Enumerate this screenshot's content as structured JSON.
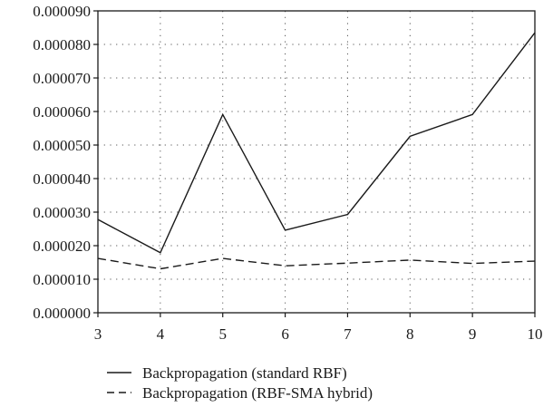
{
  "chart_data": {
    "type": "line",
    "title": "",
    "xlabel": "",
    "ylabel": "",
    "x": [
      3,
      4,
      5,
      6,
      7,
      8,
      9,
      10
    ],
    "xlim": [
      3,
      10
    ],
    "ylim": [
      0,
      9e-05
    ],
    "x_ticks": [
      "3",
      "4",
      "5",
      "6",
      "7",
      "8",
      "9",
      "10"
    ],
    "y_ticks": [
      {
        "value": 9e-05,
        "label": "0.000090"
      },
      {
        "value": 8e-05,
        "label": "0.000080"
      },
      {
        "value": 7e-05,
        "label": "0.000070"
      },
      {
        "value": 6e-05,
        "label": "0.000060"
      },
      {
        "value": 5e-05,
        "label": "0.000050"
      },
      {
        "value": 4e-05,
        "label": "0.000040"
      },
      {
        "value": 3e-05,
        "label": "0.000030"
      },
      {
        "value": 2e-05,
        "label": "0.000020"
      },
      {
        "value": 1e-05,
        "label": "0.000010"
      },
      {
        "value": 0.0,
        "label": "0.000000"
      }
    ],
    "grid": true,
    "grid_style": "dotted",
    "legend_position": "bottom",
    "series": [
      {
        "name": "Backpropagation (standard RBF)",
        "line_style": "solid",
        "color": "#1a1a1a",
        "values": [
          2.78e-05,
          1.79e-05,
          5.91e-05,
          2.46e-05,
          2.93e-05,
          5.26e-05,
          5.91e-05,
          8.35e-05
        ]
      },
      {
        "name": "Backpropagation (RBF-SMA hybrid)",
        "line_style": "dashed",
        "color": "#1a1a1a",
        "values": [
          1.62e-05,
          1.31e-05,
          1.62e-05,
          1.4e-05,
          1.48e-05,
          1.57e-05,
          1.47e-05,
          1.54e-05
        ]
      }
    ]
  }
}
